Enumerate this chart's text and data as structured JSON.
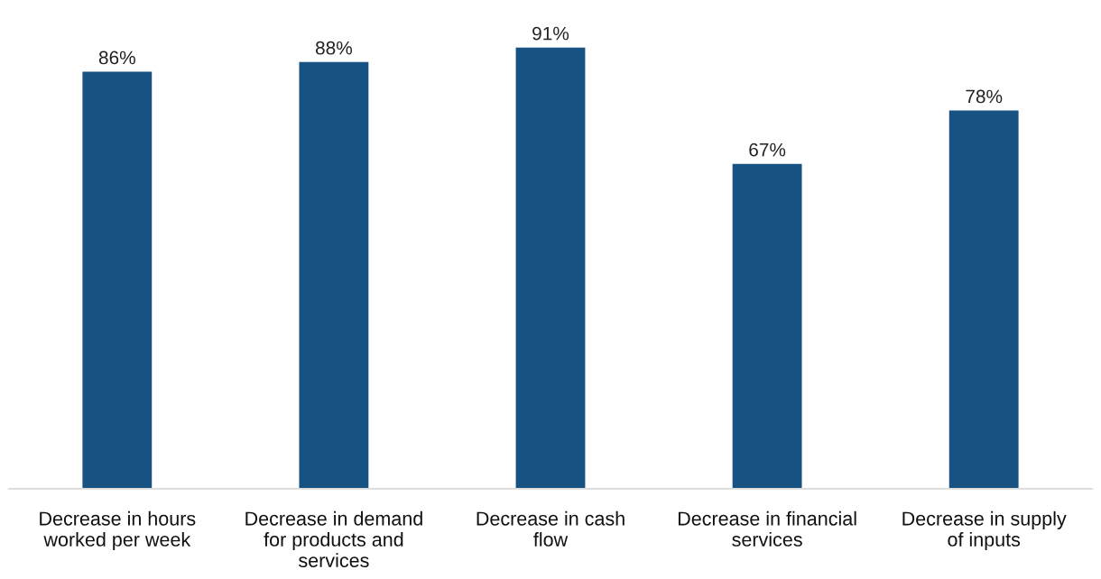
{
  "chart_data": {
    "type": "bar",
    "categories": [
      "Decrease in hours\nworked per week",
      "Decrease in demand\nfor products and\nservices",
      "Decrease in cash\nflow",
      "Decrease in financial\nservices",
      "Decrease in supply\nof inputs"
    ],
    "values": [
      86,
      88,
      91,
      67,
      78
    ],
    "value_labels": [
      "86%",
      "88%",
      "91%",
      "67%",
      "78%"
    ],
    "color": "#175283",
    "grid": false,
    "tick_labels": "x"
  }
}
